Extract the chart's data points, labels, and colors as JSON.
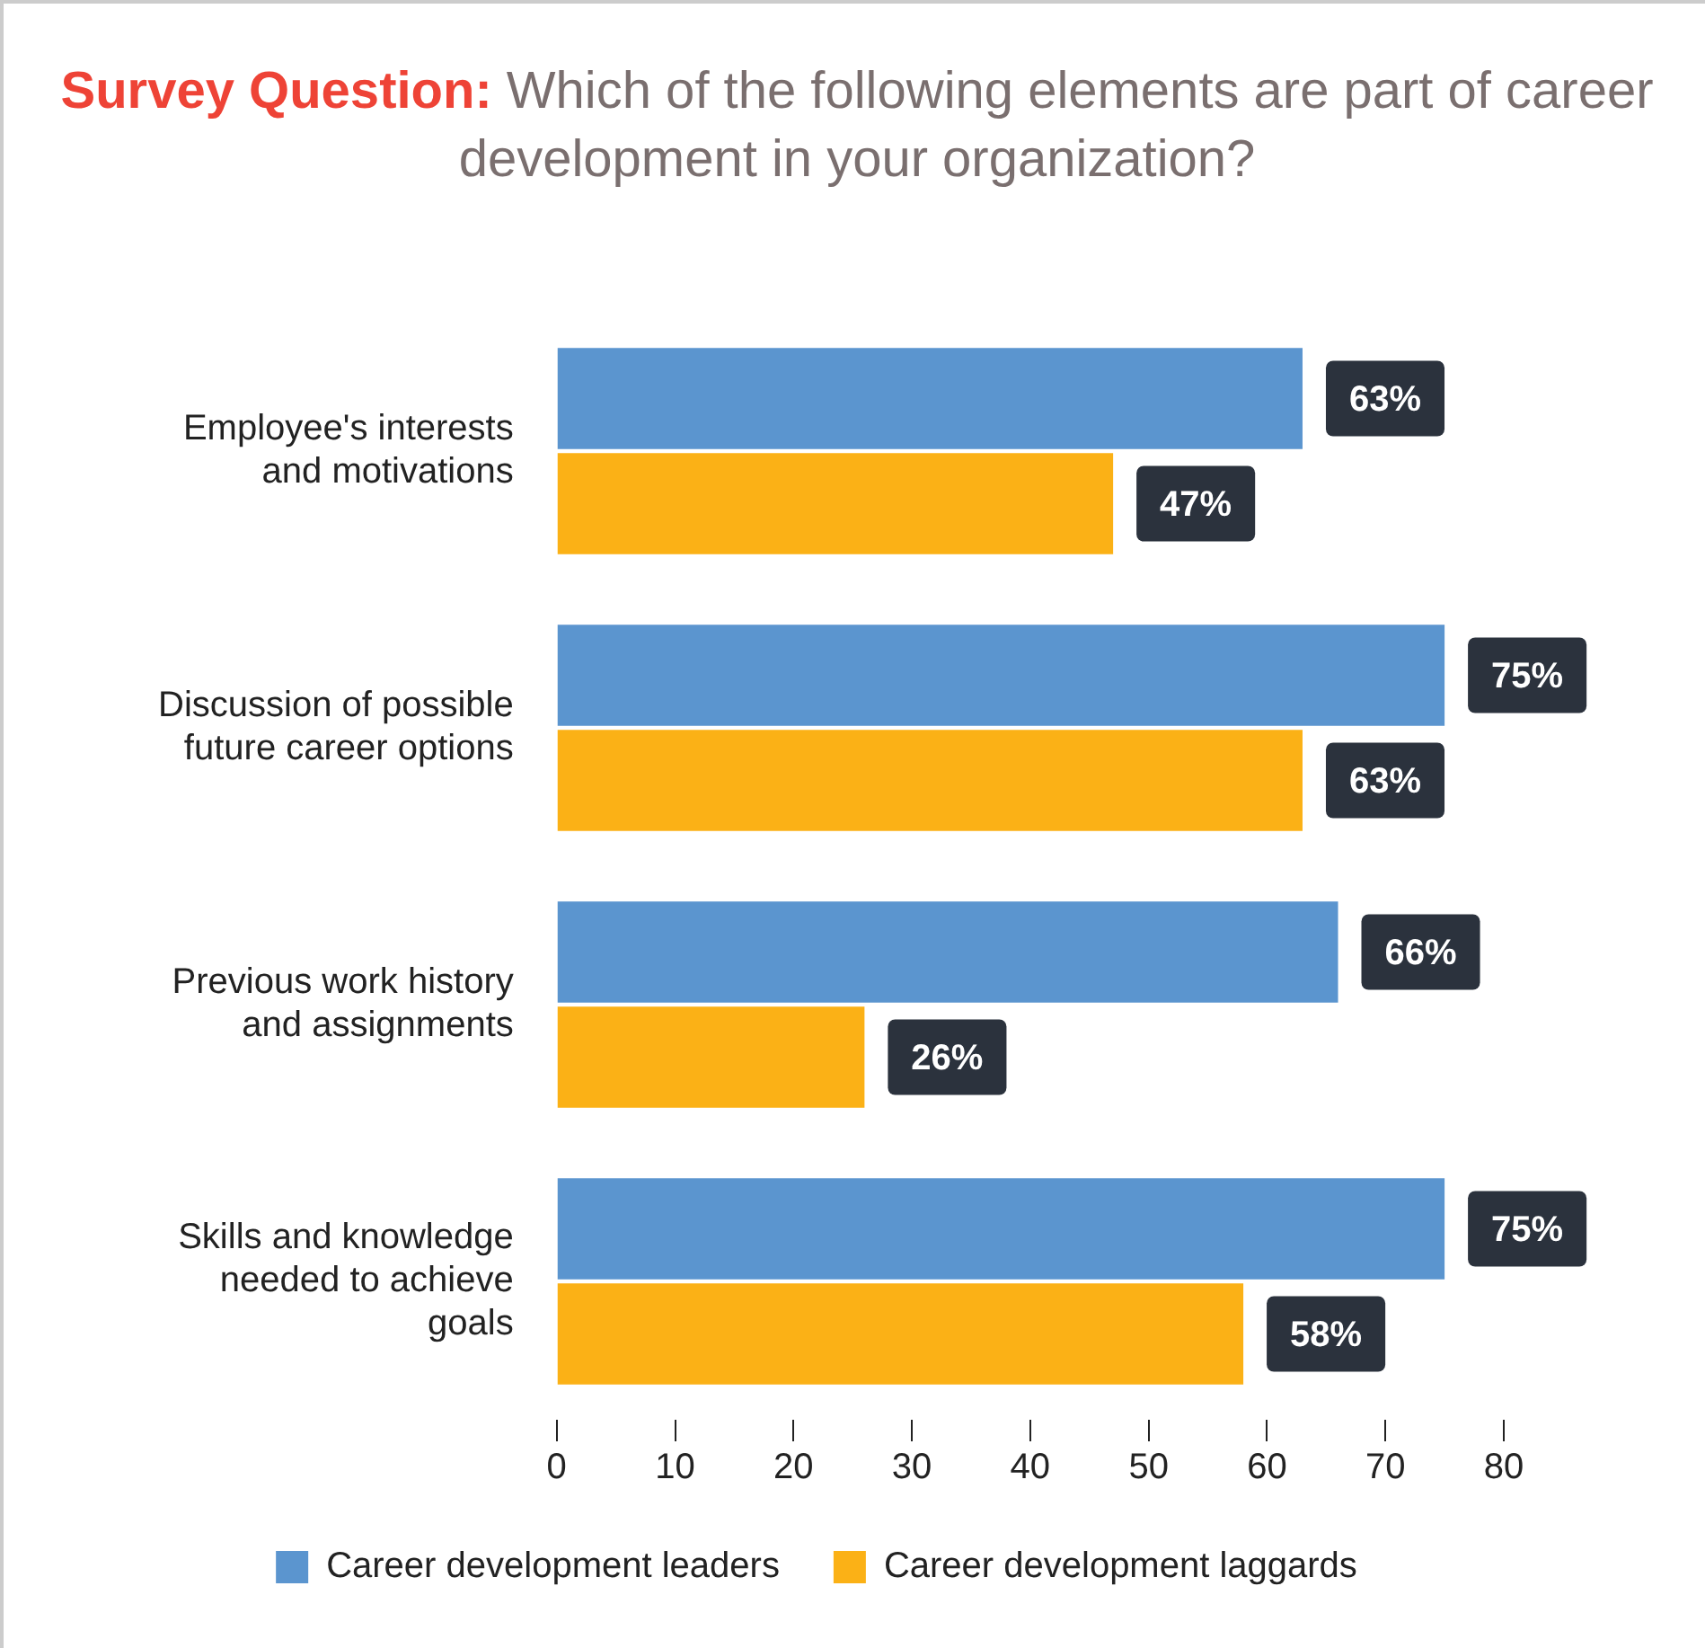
{
  "chart_data": {
    "type": "bar",
    "orientation": "horizontal",
    "title": "Survey Question: Which of the following elements are part of career development in your organization?",
    "categories": [
      "Employee's interests and motivations",
      "Discussion of possible future career options",
      "Previous work history and assignments",
      "Skills and knowledge needed to achieve goals"
    ],
    "series": [
      {
        "name": "Career development leaders",
        "color": "#5b95cf",
        "values": [
          63,
          75,
          66,
          75
        ],
        "value_labels": [
          "63%",
          "75%",
          "66%",
          "75%"
        ]
      },
      {
        "name": "Career development laggards",
        "color": "#fbb116",
        "values": [
          47,
          63,
          26,
          58
        ],
        "value_labels": [
          "47%",
          "63%",
          "26%",
          "58%"
        ]
      }
    ],
    "xlim": [
      0,
      80
    ],
    "xticks": [
      0,
      10,
      20,
      30,
      40,
      50,
      60,
      70,
      80
    ],
    "grid": false,
    "legend": "bottom"
  }
}
